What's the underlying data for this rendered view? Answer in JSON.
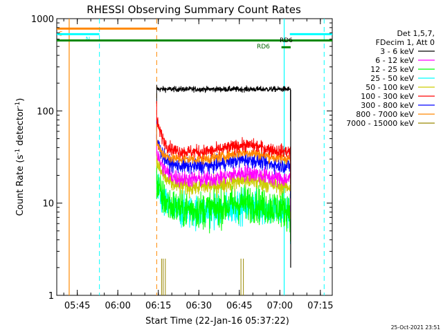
{
  "chart_data": {
    "type": "line",
    "title": "RHESSI Observing Summary Count Rates",
    "xlabel": "Start Time (22-Jan-16 05:37:22)",
    "ylabel_main": "Count Rate (s",
    "ylabel_sup1": "-1",
    "ylabel_mid": " detector",
    "ylabel_sup2": "-1",
    "ylabel_end": ")",
    "yscale": "log",
    "ylim": [
      1,
      1000
    ],
    "xlim_minutes": [
      0,
      102
    ],
    "x_ticks": [
      {
        "m": 7.6,
        "label": "05:45"
      },
      {
        "m": 22.6,
        "label": "06:00"
      },
      {
        "m": 37.6,
        "label": "06:15"
      },
      {
        "m": 52.6,
        "label": "06:30"
      },
      {
        "m": 67.6,
        "label": "06:45"
      },
      {
        "m": 82.6,
        "label": "07:00"
      },
      {
        "m": 97.6,
        "label": "07:15"
      }
    ],
    "y_ticks": [
      {
        "v": 1,
        "label": "1"
      },
      {
        "v": 10,
        "label": "10"
      },
      {
        "v": 100,
        "label": "100"
      },
      {
        "v": 1000,
        "label": "1000"
      }
    ],
    "legend": {
      "header": [
        "Det 1,5,7,",
        "FDecim 1, Att 0"
      ],
      "placement": "right"
    },
    "series": [
      {
        "name": "3 - 6 keV",
        "color": "#000000",
        "base": 172,
        "noise": 0.03,
        "start": 120,
        "decay": 0
      },
      {
        "name": "6 - 12 keV",
        "color": "#ff00ff",
        "base": 18,
        "noise": 0.09,
        "start": 35,
        "decay": 2.5
      },
      {
        "name": "12 - 25 keV",
        "color": "#00ff00",
        "base": 8.5,
        "noise": 0.2,
        "start": 16,
        "decay": 2.5
      },
      {
        "name": "25 - 50 keV",
        "color": "#00ffff",
        "base": 8,
        "noise": 0.18,
        "start": 14,
        "decay": 2.5
      },
      {
        "name": "50 - 100 keV",
        "color": "#cccc00",
        "base": 15,
        "noise": 0.1,
        "start": 28,
        "decay": 2.5
      },
      {
        "name": "100 - 300 keV",
        "color": "#ff0000",
        "base": 36,
        "noise": 0.07,
        "start": 80,
        "decay": 2.0
      },
      {
        "name": "300 - 800 keV",
        "color": "#0000ff",
        "base": 25,
        "noise": 0.08,
        "start": 50,
        "decay": 2.0
      },
      {
        "name": "800 - 7000 keV",
        "color": "#ff8800",
        "base": 30,
        "noise": 0.06,
        "start": 45,
        "decay": 2.0
      },
      {
        "name": "7000 - 15000 keV",
        "color": "#998800",
        "base": 1,
        "noise": 0,
        "start": 1,
        "decay": 0
      }
    ],
    "data_window_minutes": [
      37.0,
      86.5
    ],
    "hump": {
      "center": 70,
      "width": 9,
      "amplitude": 0.18
    },
    "annotations": {
      "s_label": "S",
      "n_label": "N",
      "rd_upper": "RD6",
      "rd_lower": "RD6"
    },
    "bars": [
      {
        "color": "#ff8800",
        "value": 780,
        "x0": 0,
        "x1": 37,
        "label_key": "s_label"
      },
      {
        "color": "#00ffff",
        "value": 680,
        "x0": 0,
        "x1": 15.8,
        "label_key": "n_label"
      },
      {
        "color": "#00ffff",
        "value": 680,
        "x0": 86.3,
        "x1": 102,
        "label_key": null
      },
      {
        "color": "#008800",
        "value": 580,
        "x0": 0,
        "x1": 102,
        "label_key": null
      },
      {
        "color": "#008800",
        "value": 490,
        "x0": 83.2,
        "x1": 86.6,
        "label_key": null
      }
    ],
    "vlines_solid": [
      {
        "m": 4.6,
        "color": "#ff8800"
      },
      {
        "m": 84.2,
        "color": "#00ffff"
      }
    ],
    "vlines_dashed": [
      {
        "m": 15.8,
        "color": "#00ffff"
      },
      {
        "m": 37.0,
        "color": "#ff8800"
      },
      {
        "m": 99.0,
        "color": "#00ffff"
      }
    ]
  },
  "timestamp": "25-Oct-2021 23:51"
}
